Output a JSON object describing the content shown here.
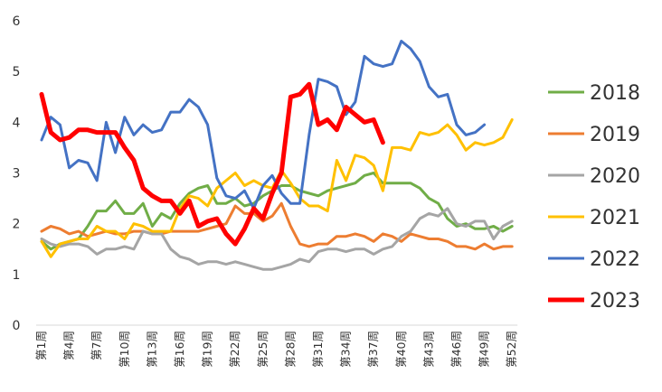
{
  "chart_data": {
    "type": "line",
    "title": "",
    "xlabel": "",
    "ylabel": "",
    "ylim": [
      0,
      6
    ],
    "yticks": [
      "0",
      "1",
      "2",
      "3",
      "4",
      "5",
      "6"
    ],
    "xticks": [
      {
        "week": 1,
        "label": "第1周"
      },
      {
        "week": 4,
        "label": "第4周"
      },
      {
        "week": 7,
        "label": "第7周"
      },
      {
        "week": 10,
        "label": "第10周"
      },
      {
        "week": 13,
        "label": "第13周"
      },
      {
        "week": 16,
        "label": "第16周"
      },
      {
        "week": 19,
        "label": "第19周"
      },
      {
        "week": 22,
        "label": "第22周"
      },
      {
        "week": 25,
        "label": "第25周"
      },
      {
        "week": 28,
        "label": "第28周"
      },
      {
        "week": 31,
        "label": "第31周"
      },
      {
        "week": 34,
        "label": "第34周"
      },
      {
        "week": 37,
        "label": "第37周"
      },
      {
        "week": 40,
        "label": "第40周"
      },
      {
        "week": 43,
        "label": "第43周"
      },
      {
        "week": 46,
        "label": "第46周"
      },
      {
        "week": 49,
        "label": "第49周"
      },
      {
        "week": 52,
        "label": "第52周"
      }
    ],
    "grid": false,
    "legend_position": "right",
    "series": [
      {
        "name": "2018",
        "color": "#70ad47",
        "width": 3,
        "values": [
          1.65,
          1.5,
          1.6,
          1.65,
          1.7,
          1.95,
          2.25,
          2.25,
          2.45,
          2.2,
          2.2,
          2.4,
          1.95,
          2.2,
          2.1,
          2.4,
          2.6,
          2.7,
          2.75,
          2.4,
          2.4,
          2.5,
          2.35,
          2.4,
          2.55,
          2.65,
          2.75,
          2.75,
          2.65,
          2.6,
          2.55,
          2.65,
          2.7,
          2.75,
          2.8,
          2.95,
          3.0,
          2.8,
          2.8,
          2.8,
          2.8,
          2.7,
          2.5,
          2.4,
          2.1,
          1.95,
          2.0,
          1.9,
          1.9,
          1.95,
          1.85,
          1.95
        ]
      },
      {
        "name": "2019",
        "color": "#ed7d31",
        "width": 3,
        "values": [
          1.85,
          1.95,
          1.9,
          1.8,
          1.85,
          1.75,
          1.8,
          1.85,
          1.8,
          1.8,
          1.85,
          1.85,
          1.8,
          1.8,
          1.85,
          1.85,
          1.85,
          1.85,
          1.9,
          1.95,
          2.0,
          2.35,
          2.2,
          2.2,
          2.05,
          2.15,
          2.4,
          1.95,
          1.6,
          1.55,
          1.6,
          1.6,
          1.75,
          1.75,
          1.8,
          1.75,
          1.65,
          1.8,
          1.75,
          1.65,
          1.8,
          1.75,
          1.7,
          1.7,
          1.65,
          1.55,
          1.55,
          1.5,
          1.6,
          1.5,
          1.55,
          1.55
        ]
      },
      {
        "name": "2020",
        "color": "#a5a5a5",
        "width": 3,
        "values": [
          1.7,
          1.6,
          1.55,
          1.6,
          1.6,
          1.55,
          1.4,
          1.5,
          1.5,
          1.55,
          1.5,
          1.85,
          1.8,
          1.8,
          1.5,
          1.35,
          1.3,
          1.2,
          1.25,
          1.25,
          1.2,
          1.25,
          1.2,
          1.15,
          1.1,
          1.1,
          1.15,
          1.2,
          1.3,
          1.25,
          1.45,
          1.5,
          1.5,
          1.45,
          1.5,
          1.5,
          1.4,
          1.5,
          1.55,
          1.75,
          1.85,
          2.1,
          2.2,
          2.15,
          2.3,
          2.0,
          1.95,
          2.05,
          2.05,
          1.7,
          1.95,
          2.05
        ]
      },
      {
        "name": "2021",
        "color": "#ffc000",
        "width": 3,
        "values": [
          1.65,
          1.35,
          1.6,
          1.65,
          1.7,
          1.7,
          1.95,
          1.85,
          1.85,
          1.7,
          2.0,
          1.95,
          1.85,
          1.85,
          1.85,
          2.3,
          2.55,
          2.5,
          2.35,
          2.7,
          2.85,
          3.0,
          2.75,
          2.85,
          2.75,
          2.7,
          3.05,
          2.8,
          2.5,
          2.35,
          2.35,
          2.25,
          3.25,
          2.85,
          3.35,
          3.3,
          3.15,
          2.65,
          3.5,
          3.5,
          3.45,
          3.8,
          3.75,
          3.8,
          3.95,
          3.75,
          3.45,
          3.6,
          3.55,
          3.6,
          3.7,
          4.05
        ]
      },
      {
        "name": "2022",
        "color": "#4472c4",
        "width": 3,
        "values": [
          3.65,
          4.1,
          3.95,
          3.1,
          3.25,
          3.2,
          2.85,
          4.0,
          3.4,
          4.1,
          3.75,
          3.95,
          3.8,
          3.85,
          4.2,
          4.2,
          4.45,
          4.3,
          3.95,
          2.9,
          2.55,
          2.5,
          2.65,
          2.3,
          2.75,
          2.95,
          2.6,
          2.4,
          2.4,
          3.75,
          4.85,
          4.8,
          4.7,
          4.15,
          4.4,
          5.3,
          5.15,
          5.1,
          5.15,
          5.6,
          5.45,
          5.2,
          4.7,
          4.5,
          4.55,
          3.95,
          3.75,
          3.8,
          3.95
        ]
      },
      {
        "name": "2023",
        "color": "#ff0000",
        "width": 5,
        "values": [
          4.55,
          3.8,
          3.65,
          3.7,
          3.85,
          3.85,
          3.8,
          3.8,
          3.8,
          3.5,
          3.25,
          2.7,
          2.55,
          2.45,
          2.45,
          2.2,
          2.45,
          1.95,
          2.05,
          2.1,
          1.8,
          1.6,
          1.9,
          2.3,
          2.1,
          2.6,
          3.0,
          4.5,
          4.55,
          4.75,
          3.95,
          4.05,
          3.85,
          4.3,
          4.15,
          4.0,
          4.05,
          3.6
        ]
      }
    ]
  }
}
